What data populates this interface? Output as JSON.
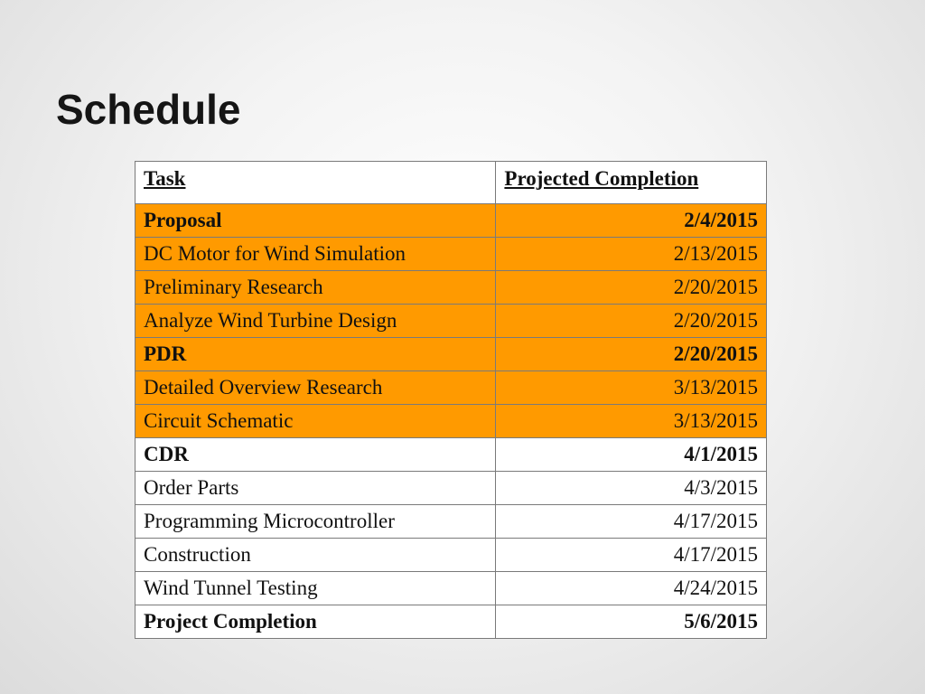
{
  "slide": {
    "title": "Schedule"
  },
  "table": {
    "headers": {
      "task": "Task",
      "completion": "Projected Completion"
    },
    "rows": [
      {
        "task": "Proposal",
        "date": "2/4/2015",
        "highlight": true,
        "bold": true
      },
      {
        "task": "DC Motor for Wind Simulation",
        "date": "2/13/2015",
        "highlight": true,
        "bold": false
      },
      {
        "task": "Preliminary Research",
        "date": "2/20/2015",
        "highlight": true,
        "bold": false
      },
      {
        "task": "Analyze Wind Turbine Design",
        "date": "2/20/2015",
        "highlight": true,
        "bold": false
      },
      {
        "task": "PDR",
        "date": "2/20/2015",
        "highlight": true,
        "bold": true
      },
      {
        "task": "Detailed Overview Research",
        "date": "3/13/2015",
        "highlight": true,
        "bold": false
      },
      {
        "task": "Circuit Schematic",
        "date": "3/13/2015",
        "highlight": true,
        "bold": false
      },
      {
        "task": "CDR",
        "date": "4/1/2015",
        "highlight": false,
        "bold": true
      },
      {
        "task": "Order Parts",
        "date": "4/3/2015",
        "highlight": false,
        "bold": false
      },
      {
        "task": "Programming Microcontroller",
        "date": "4/17/2015",
        "highlight": false,
        "bold": false
      },
      {
        "task": "Construction",
        "date": "4/17/2015",
        "highlight": false,
        "bold": false
      },
      {
        "task": "Wind Tunnel Testing",
        "date": "4/24/2015",
        "highlight": false,
        "bold": false
      },
      {
        "task": "Project Completion",
        "date": "5/6/2015",
        "highlight": false,
        "bold": true
      }
    ]
  },
  "colors": {
    "highlight": "#ff9a00",
    "plain": "#ffffff",
    "border": "#7a7a7a",
    "title": "#151515"
  }
}
